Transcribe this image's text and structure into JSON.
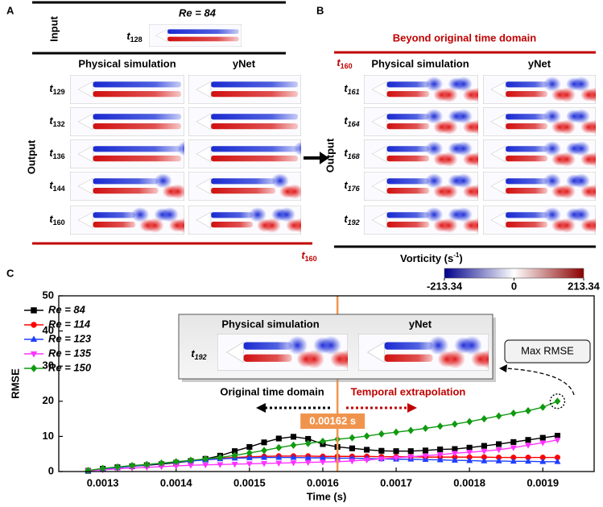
{
  "panel_a": {
    "label": "A",
    "input_label": "Input",
    "re": "Re = 84",
    "input_time": {
      "var": "t",
      "sub": "128"
    },
    "columns": [
      "Physical simulation",
      "yNet"
    ],
    "output_label": "Output",
    "rows": [
      {
        "var": "t",
        "sub": "129"
      },
      {
        "var": "t",
        "sub": "132"
      },
      {
        "var": "t",
        "sub": "136"
      },
      {
        "var": "t",
        "sub": "144"
      },
      {
        "var": "t",
        "sub": "160"
      }
    ],
    "end_time": {
      "var": "t",
      "sub": "160"
    }
  },
  "panel_b": {
    "label": "B",
    "title": "Beyond original time domain",
    "start_time": {
      "var": "t",
      "sub": "160"
    },
    "columns": [
      "Physical simulation",
      "yNet"
    ],
    "output_label": "Output",
    "rows": [
      {
        "var": "t",
        "sub": "161"
      },
      {
        "var": "t",
        "sub": "164"
      },
      {
        "var": "t",
        "sub": "168"
      },
      {
        "var": "t",
        "sub": "176"
      },
      {
        "var": "t",
        "sub": "192"
      }
    ]
  },
  "colorbar": {
    "title": "Vorticity (s",
    "title_sup": "-1",
    "title_end": ")",
    "ticks": [
      -213.34,
      0,
      213.34
    ],
    "colors": [
      "#00008b",
      "#ffffff",
      "#8b0000"
    ]
  },
  "panel_c_label": "C",
  "chart_data": {
    "type": "line",
    "xlabel": "Time (s)",
    "ylabel": "RMSE",
    "x": [
      0.00128,
      0.0013,
      0.00132,
      0.00134,
      0.00136,
      0.00138,
      0.0014,
      0.00142,
      0.00144,
      0.00146,
      0.00148,
      0.0015,
      0.00152,
      0.00154,
      0.00156,
      0.00158,
      0.0016,
      0.00162,
      0.00164,
      0.00166,
      0.00168,
      0.0017,
      0.00172,
      0.00174,
      0.00176,
      0.00178,
      0.0018,
      0.00182,
      0.00184,
      0.00186,
      0.00188,
      0.0019,
      0.00192
    ],
    "series": [
      {
        "name": "Re = 84",
        "color": "#000000",
        "marker": "square",
        "values": [
          0.2,
          0.8,
          1.2,
          1.5,
          1.8,
          2.1,
          2.5,
          3.0,
          3.6,
          4.5,
          5.8,
          7.0,
          8.3,
          9.4,
          9.9,
          9.3,
          7.8,
          7.0,
          6.6,
          6.2,
          5.9,
          5.8,
          5.8,
          6.0,
          6.3,
          6.4,
          6.8,
          7.3,
          7.8,
          8.4,
          9.0,
          9.6,
          10.2
        ]
      },
      {
        "name": "Re = 114",
        "color": "#ff0000",
        "marker": "circle",
        "values": [
          0.2,
          0.7,
          1.1,
          1.5,
          1.9,
          2.3,
          2.7,
          3.1,
          3.5,
          3.8,
          4.0,
          4.2,
          4.3,
          4.4,
          4.4,
          4.4,
          4.3,
          4.3,
          4.3,
          4.3,
          4.2,
          4.2,
          4.2,
          4.1,
          4.1,
          4.1,
          4.1,
          4.1,
          4.0,
          4.0,
          4.0,
          4.0,
          4.0
        ]
      },
      {
        "name": "Re = 123",
        "color": "#1f3fff",
        "marker": "triangle",
        "values": [
          0.2,
          0.7,
          1.1,
          1.5,
          1.9,
          2.3,
          2.7,
          3.0,
          3.3,
          3.6,
          3.8,
          3.9,
          4.0,
          4.0,
          4.0,
          3.9,
          3.9,
          3.8,
          3.8,
          3.7,
          3.6,
          3.5,
          3.5,
          3.4,
          3.3,
          3.2,
          3.1,
          3.0,
          3.0,
          2.9,
          2.9,
          2.8,
          2.8
        ]
      },
      {
        "name": "Re = 135",
        "color": "#ff33ff",
        "marker": "triangle-down",
        "values": [
          0.2,
          0.5,
          0.8,
          1.0,
          1.2,
          1.4,
          1.6,
          1.8,
          1.9,
          2.0,
          2.1,
          2.2,
          2.3,
          2.4,
          2.5,
          2.6,
          2.7,
          2.8,
          3.0,
          3.3,
          3.6,
          3.9,
          4.2,
          4.5,
          4.8,
          5.2,
          5.5,
          5.8,
          6.2,
          6.8,
          7.5,
          8.2,
          9.0
        ]
      },
      {
        "name": "Re = 150",
        "color": "#109a10",
        "marker": "diamond",
        "values": [
          0.3,
          0.9,
          1.3,
          1.7,
          2.0,
          2.4,
          2.8,
          3.2,
          3.6,
          4.0,
          4.6,
          5.3,
          6.0,
          6.8,
          7.5,
          8.0,
          8.6,
          9.2,
          9.6,
          10.1,
          10.7,
          11.2,
          11.7,
          12.3,
          12.9,
          13.5,
          14.2,
          15.0,
          15.8,
          16.6,
          17.3,
          18.3,
          20.0
        ]
      }
    ],
    "xlim": [
      0.00124,
      0.00197
    ],
    "ylim": [
      0,
      50
    ],
    "xticks": [
      0.0013,
      0.0014,
      0.0015,
      0.0016,
      0.0017,
      0.0018,
      0.0019
    ],
    "yticks": [
      0,
      10,
      20,
      30,
      40,
      50
    ],
    "legend": "upper left",
    "grid": false,
    "vline": {
      "x": 0.00162,
      "label": "0.00162 s",
      "color": "#f0944d"
    },
    "annotations": {
      "original": "Original time domain",
      "extrapolation": "Temporal extrapolation",
      "max": "Max RMSE"
    },
    "inset": {
      "columns": [
        "Physical simulation",
        "yNet"
      ],
      "time": {
        "var": "t",
        "sub": "192"
      }
    }
  }
}
